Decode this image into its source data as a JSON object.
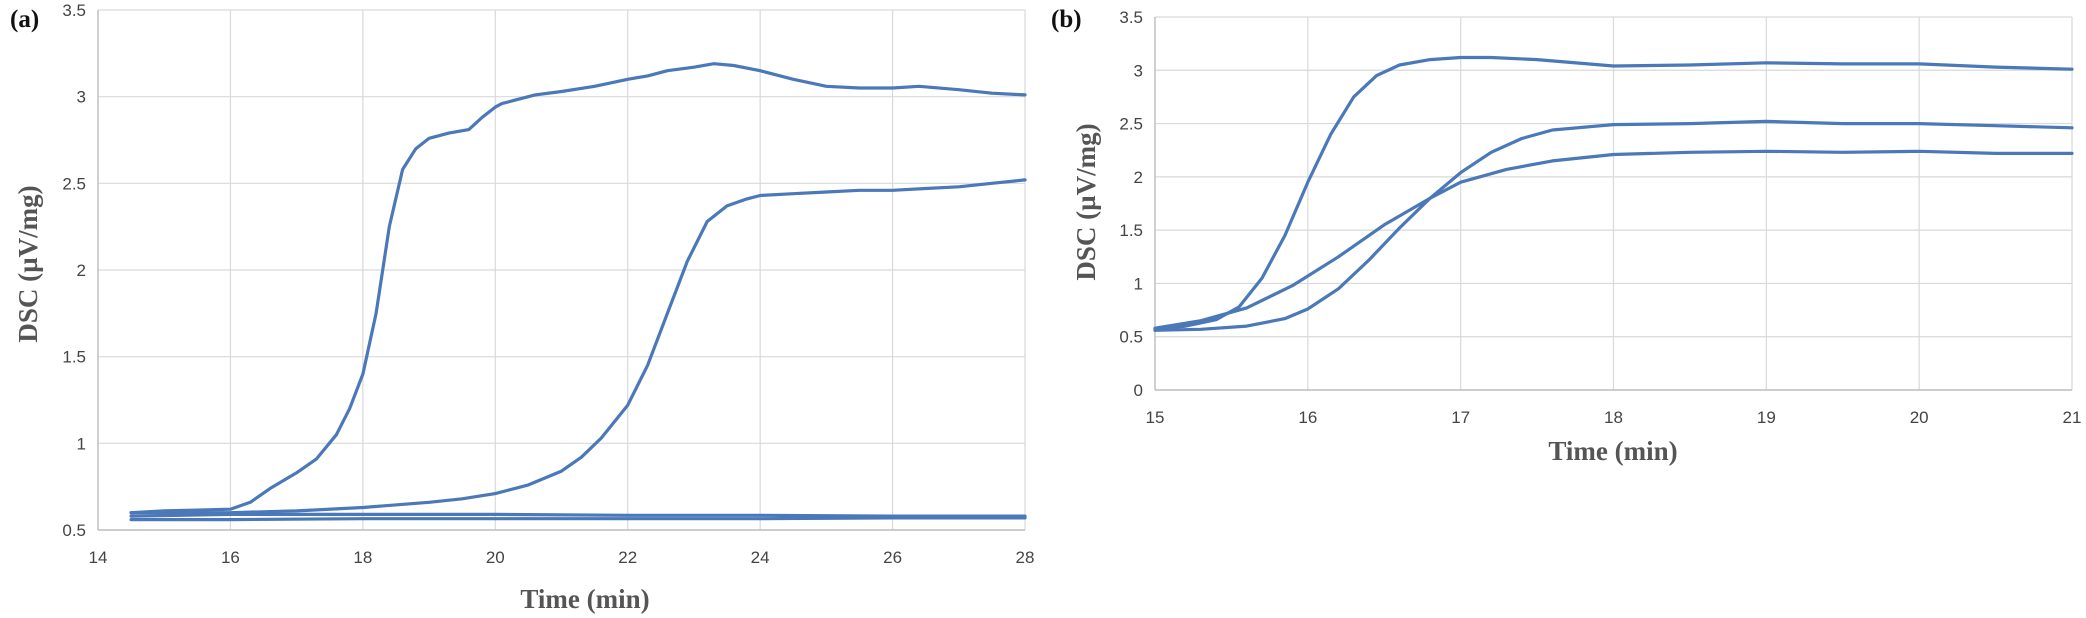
{
  "colors": {
    "series": "#4a78b8",
    "grid": "#d9d9d9",
    "axis": "#bfbfbf"
  },
  "chart_data": [
    {
      "type": "line",
      "panel_label": "(a)",
      "xlabel": "Time (min)",
      "ylabel": "DSC (µV/mg)",
      "xlim": [
        14,
        28
      ],
      "ylim": [
        0.5,
        3.5
      ],
      "xticks": [
        "14",
        "16",
        "18",
        "20",
        "22",
        "24",
        "26",
        "28"
      ],
      "yticks": [
        "0.5",
        "1",
        "1.5",
        "2",
        "2.5",
        "3",
        "3.5"
      ],
      "grid": true,
      "series": [
        {
          "x": [
            14.5,
            15,
            15.5,
            16,
            16.3,
            16.6,
            17,
            17.3,
            17.6,
            17.8,
            18,
            18.2,
            18.4,
            18.6,
            18.8,
            19,
            19.3,
            19.6,
            19.8,
            20,
            20.1,
            20.3,
            20.6,
            21,
            21.5,
            22,
            22.3,
            22.6,
            23,
            23.3,
            23.6,
            24,
            24.5,
            25,
            25.5,
            26,
            26.4,
            27,
            27.5,
            28
          ],
          "y": [
            0.6,
            0.61,
            0.615,
            0.62,
            0.66,
            0.74,
            0.83,
            0.91,
            1.05,
            1.2,
            1.4,
            1.75,
            2.25,
            2.58,
            2.7,
            2.76,
            2.79,
            2.81,
            2.88,
            2.94,
            2.96,
            2.98,
            3.01,
            3.03,
            3.06,
            3.1,
            3.12,
            3.15,
            3.17,
            3.19,
            3.18,
            3.15,
            3.1,
            3.06,
            3.05,
            3.05,
            3.06,
            3.04,
            3.02,
            3.01
          ]
        },
        {
          "x": [
            14.5,
            16,
            17,
            18,
            19,
            19.5,
            20,
            20.5,
            21,
            21.3,
            21.6,
            22,
            22.3,
            22.6,
            22.9,
            23.2,
            23.5,
            23.8,
            24,
            24.5,
            25,
            25.5,
            26,
            26.5,
            27,
            27.5,
            28
          ],
          "y": [
            0.6,
            0.6,
            0.61,
            0.63,
            0.66,
            0.68,
            0.71,
            0.76,
            0.84,
            0.92,
            1.03,
            1.22,
            1.45,
            1.75,
            2.05,
            2.28,
            2.37,
            2.41,
            2.43,
            2.44,
            2.45,
            2.46,
            2.46,
            2.47,
            2.48,
            2.5,
            2.52
          ]
        },
        {
          "x": [
            14.5,
            16,
            18,
            20,
            22,
            24,
            26,
            28
          ],
          "y": [
            0.58,
            0.59,
            0.59,
            0.59,
            0.585,
            0.585,
            0.58,
            0.58
          ]
        },
        {
          "x": [
            14.5,
            16,
            18,
            20,
            22,
            24,
            26,
            28
          ],
          "y": [
            0.56,
            0.56,
            0.565,
            0.565,
            0.565,
            0.565,
            0.57,
            0.57
          ]
        }
      ]
    },
    {
      "type": "line",
      "panel_label": "(b)",
      "xlabel": "Time (min)",
      "ylabel": "DSC (µV/mg)",
      "xlim": [
        15,
        21
      ],
      "ylim": [
        0,
        3.5
      ],
      "xticks": [
        "15",
        "16",
        "17",
        "18",
        "19",
        "20",
        "21"
      ],
      "yticks": [
        "0",
        "0.5",
        "1",
        "1.5",
        "2",
        "2.5",
        "3",
        "3.5"
      ],
      "grid": true,
      "series": [
        {
          "x": [
            15,
            15.2,
            15.4,
            15.55,
            15.7,
            15.85,
            16,
            16.15,
            16.3,
            16.45,
            16.6,
            16.8,
            17,
            17.2,
            17.5,
            18,
            18.5,
            19,
            19.5,
            20,
            20.5,
            21
          ],
          "y": [
            0.57,
            0.6,
            0.66,
            0.78,
            1.05,
            1.45,
            1.95,
            2.4,
            2.75,
            2.95,
            3.05,
            3.1,
            3.12,
            3.12,
            3.1,
            3.04,
            3.05,
            3.07,
            3.06,
            3.06,
            3.03,
            3.01
          ]
        },
        {
          "x": [
            15,
            15.3,
            15.6,
            15.9,
            16.2,
            16.5,
            16.8,
            17,
            17.3,
            17.6,
            18,
            18.5,
            19,
            19.5,
            20,
            20.5,
            21
          ],
          "y": [
            0.58,
            0.65,
            0.77,
            0.98,
            1.25,
            1.55,
            1.8,
            1.95,
            2.07,
            2.15,
            2.21,
            2.23,
            2.24,
            2.23,
            2.24,
            2.22,
            2.22
          ]
        },
        {
          "x": [
            15,
            15.3,
            15.6,
            15.85,
            16,
            16.2,
            16.4,
            16.6,
            16.8,
            17,
            17.2,
            17.4,
            17.6,
            18,
            18.5,
            19,
            19.5,
            20,
            20.5,
            21
          ],
          "y": [
            0.56,
            0.57,
            0.6,
            0.67,
            0.76,
            0.95,
            1.22,
            1.52,
            1.8,
            2.04,
            2.23,
            2.36,
            2.44,
            2.49,
            2.5,
            2.52,
            2.5,
            2.5,
            2.48,
            2.46
          ]
        }
      ]
    }
  ]
}
